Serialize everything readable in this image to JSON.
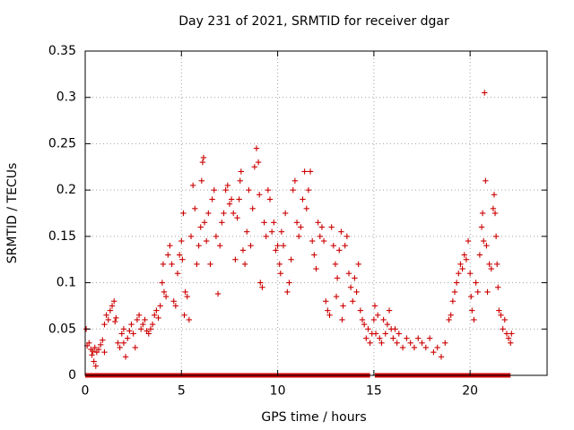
{
  "chart_data": {
    "type": "scatter",
    "title": "Day 231 of 2021, SRMTID for receiver dgar",
    "xlabel": "GPS time / hours",
    "ylabel": "SRMTID / TECUs",
    "xlim": [
      0,
      24
    ],
    "ylim": [
      0,
      0.35
    ],
    "xticks": [
      0,
      5,
      10,
      15,
      20
    ],
    "xtick_labels": [
      "0",
      "5",
      "10",
      "15",
      "20"
    ],
    "yticks": [
      0,
      0.05,
      0.1,
      0.15,
      0.2,
      0.25,
      0.3,
      0.35
    ],
    "ytick_labels": [
      "0",
      "0.05",
      "0.1",
      "0.15",
      "0.2",
      "0.25",
      "0.3",
      "0.35"
    ],
    "grid": true,
    "marker": "+",
    "color": "#cc0000",
    "zero_line_segments": [
      [
        0,
        14.8
      ],
      [
        15.05,
        22.1
      ]
    ],
    "series": [
      {
        "name": "SRMTID",
        "points": [
          [
            0.05,
            0.05
          ],
          [
            0.1,
            0.032
          ],
          [
            0.2,
            0.035
          ],
          [
            0.3,
            0.028
          ],
          [
            0.35,
            0.022
          ],
          [
            0.4,
            0.026
          ],
          [
            0.45,
            0.015
          ],
          [
            0.5,
            0.03
          ],
          [
            0.55,
            0.01
          ],
          [
            0.6,
            0.025
          ],
          [
            0.7,
            0.028
          ],
          [
            0.8,
            0.033
          ],
          [
            0.9,
            0.038
          ],
          [
            1.0,
            0.025
          ],
          [
            1.0,
            0.055
          ],
          [
            1.1,
            0.065
          ],
          [
            1.2,
            0.06
          ],
          [
            1.3,
            0.07
          ],
          [
            1.4,
            0.075
          ],
          [
            1.5,
            0.08
          ],
          [
            1.55,
            0.058
          ],
          [
            1.6,
            0.062
          ],
          [
            1.7,
            0.035
          ],
          [
            1.8,
            0.03
          ],
          [
            1.9,
            0.045
          ],
          [
            2.0,
            0.05
          ],
          [
            2.0,
            0.035
          ],
          [
            2.1,
            0.02
          ],
          [
            2.2,
            0.04
          ],
          [
            2.3,
            0.048
          ],
          [
            2.4,
            0.055
          ],
          [
            2.5,
            0.045
          ],
          [
            2.6,
            0.03
          ],
          [
            2.7,
            0.06
          ],
          [
            2.8,
            0.065
          ],
          [
            2.9,
            0.05
          ],
          [
            3.0,
            0.055
          ],
          [
            3.1,
            0.06
          ],
          [
            3.2,
            0.048
          ],
          [
            3.3,
            0.045
          ],
          [
            3.4,
            0.05
          ],
          [
            3.5,
            0.055
          ],
          [
            3.6,
            0.065
          ],
          [
            3.7,
            0.07
          ],
          [
            3.8,
            0.062
          ],
          [
            3.9,
            0.075
          ],
          [
            4.0,
            0.1
          ],
          [
            4.05,
            0.12
          ],
          [
            4.1,
            0.09
          ],
          [
            4.2,
            0.085
          ],
          [
            4.3,
            0.13
          ],
          [
            4.4,
            0.14
          ],
          [
            4.5,
            0.12
          ],
          [
            4.6,
            0.08
          ],
          [
            4.7,
            0.075
          ],
          [
            4.8,
            0.11
          ],
          [
            4.9,
            0.13
          ],
          [
            5.0,
            0.145
          ],
          [
            5.05,
            0.125
          ],
          [
            5.1,
            0.175
          ],
          [
            5.15,
            0.065
          ],
          [
            5.2,
            0.09
          ],
          [
            5.3,
            0.085
          ],
          [
            5.4,
            0.06
          ],
          [
            5.5,
            0.15
          ],
          [
            5.6,
            0.205
          ],
          [
            5.7,
            0.18
          ],
          [
            5.8,
            0.12
          ],
          [
            5.9,
            0.14
          ],
          [
            6.0,
            0.16
          ],
          [
            6.05,
            0.21
          ],
          [
            6.1,
            0.23
          ],
          [
            6.15,
            0.235
          ],
          [
            6.2,
            0.165
          ],
          [
            6.3,
            0.145
          ],
          [
            6.4,
            0.175
          ],
          [
            6.5,
            0.12
          ],
          [
            6.6,
            0.19
          ],
          [
            6.7,
            0.2
          ],
          [
            6.8,
            0.15
          ],
          [
            6.9,
            0.088
          ],
          [
            7.0,
            0.14
          ],
          [
            7.1,
            0.165
          ],
          [
            7.2,
            0.175
          ],
          [
            7.3,
            0.2
          ],
          [
            7.4,
            0.205
          ],
          [
            7.5,
            0.185
          ],
          [
            7.6,
            0.19
          ],
          [
            7.7,
            0.175
          ],
          [
            7.8,
            0.125
          ],
          [
            7.9,
            0.17
          ],
          [
            8.0,
            0.19
          ],
          [
            8.05,
            0.21
          ],
          [
            8.1,
            0.22
          ],
          [
            8.2,
            0.135
          ],
          [
            8.3,
            0.12
          ],
          [
            8.4,
            0.155
          ],
          [
            8.5,
            0.2
          ],
          [
            8.6,
            0.14
          ],
          [
            8.7,
            0.18
          ],
          [
            8.8,
            0.225
          ],
          [
            8.9,
            0.245
          ],
          [
            9.0,
            0.23
          ],
          [
            9.05,
            0.195
          ],
          [
            9.1,
            0.1
          ],
          [
            9.2,
            0.095
          ],
          [
            9.3,
            0.165
          ],
          [
            9.4,
            0.15
          ],
          [
            9.5,
            0.2
          ],
          [
            9.6,
            0.19
          ],
          [
            9.7,
            0.155
          ],
          [
            9.8,
            0.165
          ],
          [
            9.9,
            0.135
          ],
          [
            10.0,
            0.14
          ],
          [
            10.1,
            0.12
          ],
          [
            10.15,
            0.11
          ],
          [
            10.2,
            0.155
          ],
          [
            10.3,
            0.14
          ],
          [
            10.4,
            0.175
          ],
          [
            10.5,
            0.09
          ],
          [
            10.6,
            0.1
          ],
          [
            10.7,
            0.125
          ],
          [
            10.8,
            0.2
          ],
          [
            10.9,
            0.21
          ],
          [
            11.0,
            0.165
          ],
          [
            11.1,
            0.15
          ],
          [
            11.2,
            0.16
          ],
          [
            11.3,
            0.19
          ],
          [
            11.4,
            0.22
          ],
          [
            11.5,
            0.18
          ],
          [
            11.6,
            0.2
          ],
          [
            11.7,
            0.22
          ],
          [
            11.8,
            0.145
          ],
          [
            11.9,
            0.13
          ],
          [
            12.0,
            0.115
          ],
          [
            12.1,
            0.165
          ],
          [
            12.2,
            0.15
          ],
          [
            12.3,
            0.16
          ],
          [
            12.4,
            0.145
          ],
          [
            12.5,
            0.08
          ],
          [
            12.6,
            0.07
          ],
          [
            12.7,
            0.065
          ],
          [
            12.8,
            0.16
          ],
          [
            12.9,
            0.14
          ],
          [
            13.0,
            0.12
          ],
          [
            13.05,
            0.085
          ],
          [
            13.1,
            0.105
          ],
          [
            13.2,
            0.135
          ],
          [
            13.3,
            0.155
          ],
          [
            13.35,
            0.06
          ],
          [
            13.4,
            0.075
          ],
          [
            13.5,
            0.14
          ],
          [
            13.6,
            0.15
          ],
          [
            13.7,
            0.11
          ],
          [
            13.8,
            0.095
          ],
          [
            13.9,
            0.08
          ],
          [
            14.0,
            0.105
          ],
          [
            14.1,
            0.09
          ],
          [
            14.2,
            0.12
          ],
          [
            14.3,
            0.07
          ],
          [
            14.4,
            0.06
          ],
          [
            14.5,
            0.055
          ],
          [
            14.6,
            0.04
          ],
          [
            14.7,
            0.05
          ],
          [
            14.8,
            0.035
          ],
          [
            14.9,
            0.045
          ],
          [
            15.0,
            0.06
          ],
          [
            15.05,
            0.075
          ],
          [
            15.1,
            0.045
          ],
          [
            15.2,
            0.065
          ],
          [
            15.3,
            0.04
          ],
          [
            15.4,
            0.035
          ],
          [
            15.5,
            0.06
          ],
          [
            15.6,
            0.045
          ],
          [
            15.7,
            0.055
          ],
          [
            15.8,
            0.07
          ],
          [
            15.9,
            0.05
          ],
          [
            16.0,
            0.04
          ],
          [
            16.1,
            0.05
          ],
          [
            16.2,
            0.035
          ],
          [
            16.3,
            0.045
          ],
          [
            16.5,
            0.03
          ],
          [
            16.7,
            0.04
          ],
          [
            16.9,
            0.035
          ],
          [
            17.1,
            0.03
          ],
          [
            17.3,
            0.04
          ],
          [
            17.5,
            0.035
          ],
          [
            17.7,
            0.03
          ],
          [
            17.9,
            0.04
          ],
          [
            18.1,
            0.025
          ],
          [
            18.3,
            0.03
          ],
          [
            18.5,
            0.02
          ],
          [
            18.7,
            0.035
          ],
          [
            18.9,
            0.06
          ],
          [
            19.0,
            0.065
          ],
          [
            19.1,
            0.08
          ],
          [
            19.2,
            0.09
          ],
          [
            19.3,
            0.1
          ],
          [
            19.4,
            0.11
          ],
          [
            19.5,
            0.12
          ],
          [
            19.6,
            0.115
          ],
          [
            19.7,
            0.13
          ],
          [
            19.8,
            0.125
          ],
          [
            19.9,
            0.145
          ],
          [
            20.0,
            0.11
          ],
          [
            20.05,
            0.085
          ],
          [
            20.1,
            0.07
          ],
          [
            20.2,
            0.06
          ],
          [
            20.3,
            0.1
          ],
          [
            20.4,
            0.09
          ],
          [
            20.5,
            0.13
          ],
          [
            20.6,
            0.16
          ],
          [
            20.65,
            0.175
          ],
          [
            20.7,
            0.145
          ],
          [
            20.75,
            0.305
          ],
          [
            20.8,
            0.21
          ],
          [
            20.85,
            0.14
          ],
          [
            20.9,
            0.09
          ],
          [
            21.0,
            0.12
          ],
          [
            21.1,
            0.115
          ],
          [
            21.2,
            0.18
          ],
          [
            21.25,
            0.195
          ],
          [
            21.3,
            0.175
          ],
          [
            21.35,
            0.15
          ],
          [
            21.4,
            0.12
          ],
          [
            21.45,
            0.095
          ],
          [
            21.5,
            0.07
          ],
          [
            21.6,
            0.065
          ],
          [
            21.7,
            0.05
          ],
          [
            21.8,
            0.06
          ],
          [
            21.9,
            0.045
          ],
          [
            22.0,
            0.04
          ],
          [
            22.1,
            0.035
          ],
          [
            22.15,
            0.045
          ]
        ]
      }
    ]
  }
}
